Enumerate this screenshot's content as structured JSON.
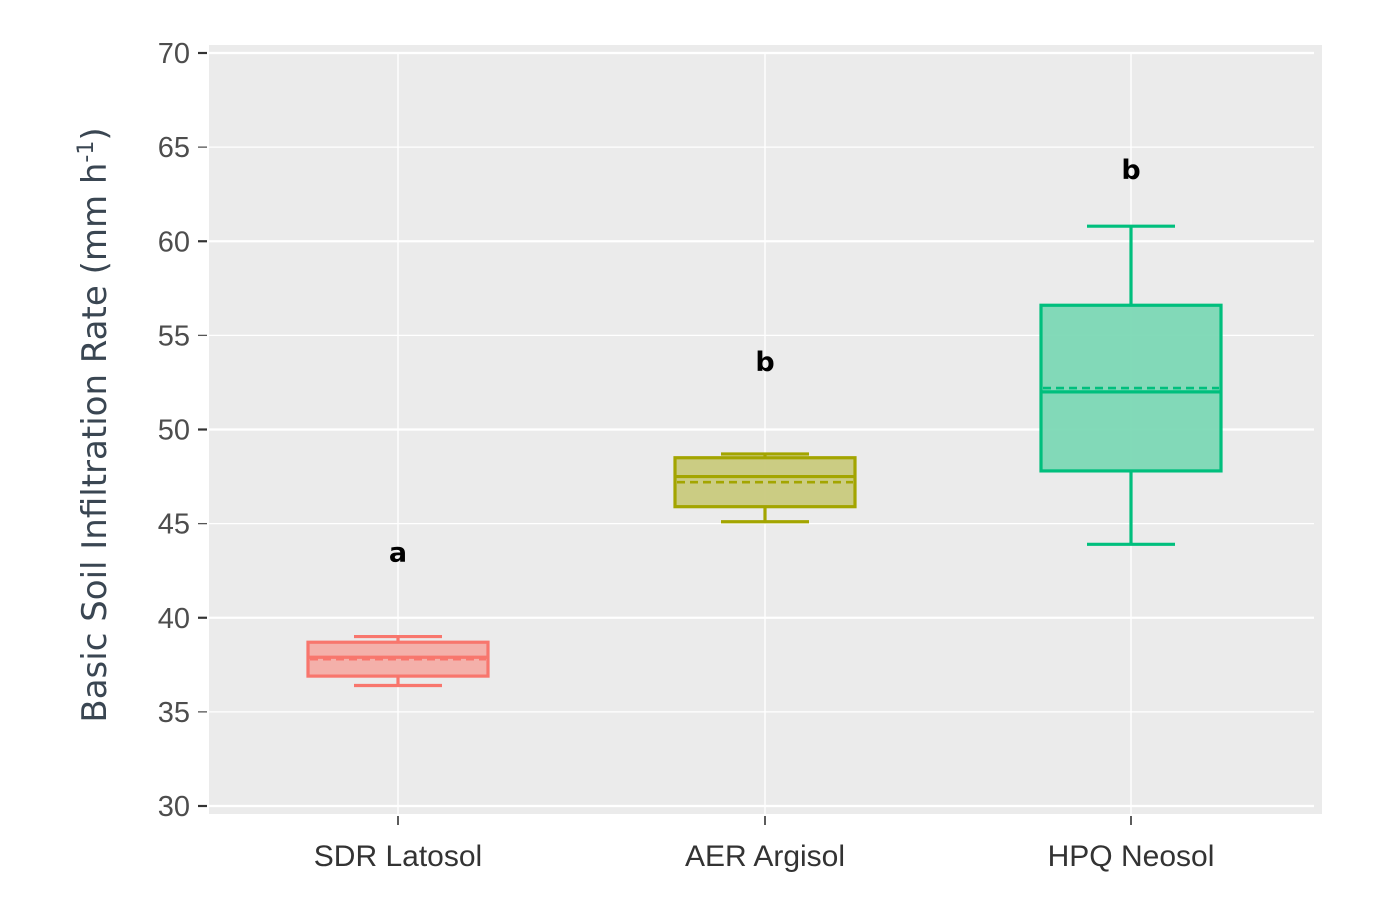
{
  "chart_data": {
    "type": "boxplot",
    "title": "",
    "xlabel": "",
    "ylabel": "Basic Soil Infiltration Rate (mm h-1)",
    "ylabel_parts": {
      "main": "Basic Soil Infiltration Rate (mm h",
      "superscript": "-1",
      "close": ")"
    },
    "ylim": [
      30,
      70
    ],
    "yticks": [
      30,
      35,
      40,
      45,
      50,
      55,
      60,
      65,
      70
    ],
    "grid": true,
    "legend": "none",
    "background": "#ebebeb",
    "categories": [
      "SDR Latosol",
      "AER Argisol",
      "HPQ Neosol"
    ],
    "series": [
      {
        "name": "SDR Latosol",
        "color": "#f8766d",
        "fill": "#f4aaa4",
        "whisker_low": 36.4,
        "q1": 36.9,
        "median": 37.9,
        "mean": 37.8,
        "q3": 38.7,
        "whisker_high": 39.0,
        "significance_letter": "a",
        "letter_y": 43.0
      },
      {
        "name": "AER Argisol",
        "color": "#a3a500",
        "fill": "#c8c97a",
        "whisker_low": 45.1,
        "q1": 45.9,
        "median": 47.5,
        "mean": 47.2,
        "q3": 48.5,
        "whisker_high": 48.7,
        "significance_letter": "b",
        "letter_y": 53.1
      },
      {
        "name": "HPQ Neosol",
        "color": "#00bf7d",
        "fill": "#78d7b3",
        "whisker_low": 43.9,
        "q1": 47.8,
        "median": 52.0,
        "mean": 52.2,
        "q3": 56.6,
        "whisker_high": 60.8,
        "significance_letter": "b",
        "letter_y": 63.3
      }
    ]
  }
}
